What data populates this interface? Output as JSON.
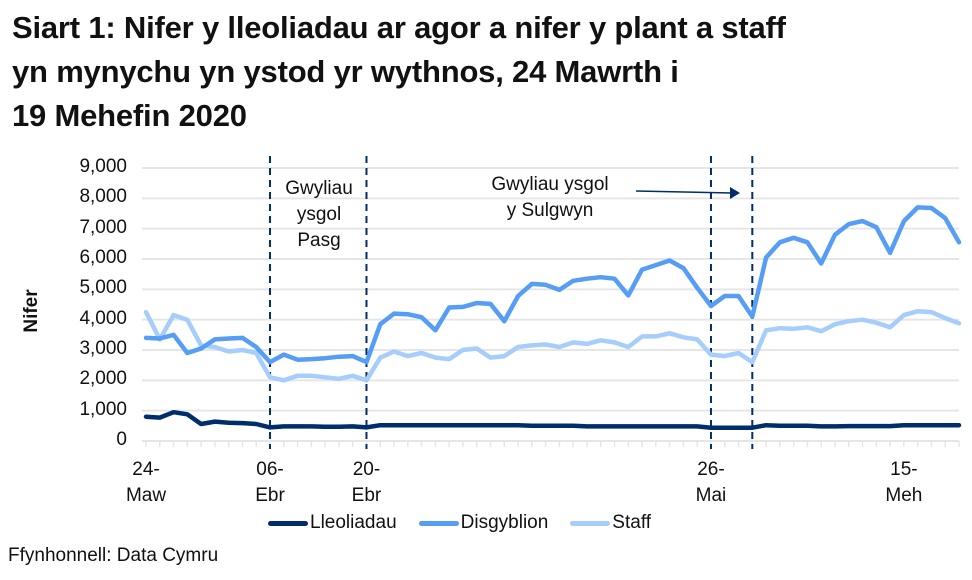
{
  "title_lines": [
    "Siart 1: Nifer y lleoliadau ar agor a nifer y plant a staff",
    "yn mynychu yn ystod yr wythnos, 24 Mawrth i",
    "19 Mehefin 2020"
  ],
  "source": "Ffynhonnell: Data Cymru",
  "annotations": {
    "easter_line1": "Gwyliau",
    "easter_line2": "ysgol",
    "easter_line3": "Pasg",
    "whitsun_line1": "Gwyliau ysgol",
    "whitsun_line2": "y Sulgwyn"
  },
  "legend": {
    "series0": "Lleoliadau",
    "series1": "Disgyblion",
    "series2": "Staff"
  },
  "colors": {
    "lleoliadau": "#002D6B",
    "disgyblion": "#559DF5",
    "staff": "#A6CDFB",
    "gridline": "#E6E6E6",
    "dashed": "#002D6B"
  },
  "chart_data": {
    "type": "line",
    "title": "Siart 1: Nifer y lleoliadau ar agor a nifer y plant a staff yn mynychu yn ystod yr wythnos, 24 Mawrth i 19 Mehefin 2020",
    "xlabel": "",
    "ylabel": "Nifer",
    "ylim": [
      0,
      9000
    ],
    "yticks": [
      "0",
      "1,000",
      "2,000",
      "3,000",
      "4,000",
      "5,000",
      "6,000",
      "7,000",
      "8,000",
      "9,000"
    ],
    "xtick_labels": [
      {
        "index": 0,
        "line1": "24-",
        "line2": "Maw"
      },
      {
        "index": 9,
        "line1": "06-",
        "line2": "Ebr"
      },
      {
        "index": 16,
        "line1": "20-",
        "line2": "Ebr"
      },
      {
        "index": 41,
        "line1": "26-",
        "line2": "Mai"
      },
      {
        "index": 55,
        "line1": "15-",
        "line2": "Meh"
      }
    ],
    "grid": true,
    "legend_position": "bottom",
    "point_count": 60,
    "vertical_markers": [
      {
        "index": 9,
        "style": "dashed"
      },
      {
        "index": 16,
        "style": "dashed"
      },
      {
        "index": 41,
        "style": "dashed"
      },
      {
        "index": 44,
        "style": "dashed"
      }
    ],
    "series": [
      {
        "name": "Lleoliadau",
        "values": [
          800,
          770,
          950,
          880,
          560,
          640,
          600,
          590,
          560,
          450,
          480,
          480,
          480,
          470,
          470,
          480,
          450,
          520,
          520,
          520,
          520,
          520,
          520,
          520,
          520,
          520,
          520,
          520,
          500,
          500,
          500,
          500,
          480,
          480,
          480,
          480,
          480,
          480,
          480,
          480,
          480,
          440,
          440,
          440,
          440,
          520,
          500,
          500,
          500,
          480,
          480,
          490,
          490,
          490,
          490,
          520,
          520,
          520,
          520,
          520
        ]
      },
      {
        "name": "Disgyblion",
        "values": [
          3400,
          3380,
          3500,
          2900,
          3050,
          3350,
          3380,
          3400,
          3100,
          2600,
          2850,
          2680,
          2700,
          2730,
          2780,
          2800,
          2600,
          3850,
          4200,
          4180,
          4080,
          3650,
          4400,
          4420,
          4550,
          4520,
          3950,
          4780,
          5180,
          5150,
          4980,
          5280,
          5350,
          5400,
          5350,
          4800,
          5650,
          5800,
          5950,
          5700,
          5050,
          4450,
          4780,
          4780,
          4100,
          6050,
          6550,
          6700,
          6550,
          5850,
          6800,
          7150,
          7250,
          7050,
          6200,
          7250,
          7700,
          7680,
          7350,
          6550
        ]
      },
      {
        "name": "Staff",
        "values": [
          4250,
          3350,
          4150,
          4000,
          3150,
          3100,
          2950,
          3000,
          2900,
          2100,
          2000,
          2150,
          2150,
          2100,
          2050,
          2150,
          2000,
          2750,
          2950,
          2800,
          2900,
          2750,
          2700,
          3000,
          3050,
          2750,
          2800,
          3100,
          3150,
          3180,
          3100,
          3250,
          3200,
          3320,
          3250,
          3100,
          3450,
          3450,
          3550,
          3420,
          3350,
          2850,
          2800,
          2900,
          2600,
          3650,
          3720,
          3700,
          3750,
          3620,
          3850,
          3950,
          4000,
          3900,
          3750,
          4150,
          4280,
          4250,
          4050,
          3880
        ]
      }
    ]
  }
}
